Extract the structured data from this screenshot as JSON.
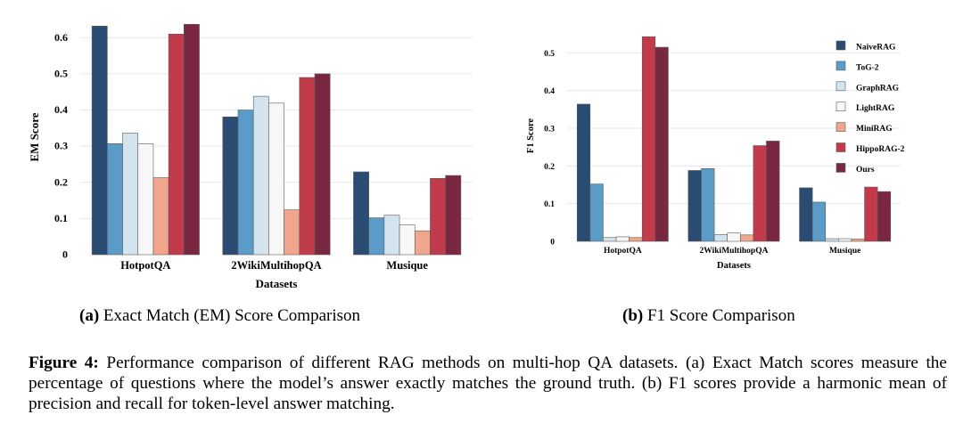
{
  "colors": {
    "NaiveRAG": "#2b4c72",
    "ToG-2": "#5b9bc8",
    "GraphRAG": "#d3e4ef",
    "LightRAG": "#f7f7f7",
    "MiniRAG": "#f0a68c",
    "HippoRAG-2": "#c23b4b",
    "Ours": "#7a2841"
  },
  "chart_data": [
    {
      "type": "bar",
      "xlabel": "Datasets",
      "ylabel": "EM Score",
      "ylim": [
        0,
        0.65
      ],
      "yticks": [
        "0",
        "0.1",
        "0.2",
        "0.3",
        "0.4",
        "0.5",
        "0.6"
      ],
      "grid": true,
      "legend": "none",
      "categories": [
        "HotpotQA",
        "2WikiMultihopQA",
        "Musique"
      ],
      "series": [
        {
          "name": "NaiveRAG",
          "values": [
            0.632,
            0.381,
            0.229
          ]
        },
        {
          "name": "ToG-2",
          "values": [
            0.307,
            0.4,
            0.102
          ]
        },
        {
          "name": "GraphRAG",
          "values": [
            0.336,
            0.438,
            0.109
          ]
        },
        {
          "name": "LightRAG",
          "values": [
            0.307,
            0.419,
            0.082
          ]
        },
        {
          "name": "MiniRAG",
          "values": [
            0.213,
            0.124,
            0.066
          ]
        },
        {
          "name": "HippoRAG-2",
          "values": [
            0.61,
            0.49,
            0.211
          ]
        },
        {
          "name": "Ours",
          "values": [
            0.637,
            0.5,
            0.219
          ]
        }
      ]
    },
    {
      "type": "bar",
      "xlabel": "Datasets",
      "ylabel": "F1 Score",
      "ylim": [
        0,
        0.56
      ],
      "yticks": [
        "0",
        "0.1",
        "0.2",
        "0.3",
        "0.4",
        "0.5"
      ],
      "grid": true,
      "legend": "top-right",
      "categories": [
        "HotpotQA",
        "2WikiMultihopQA",
        "Musique"
      ],
      "series": [
        {
          "name": "NaiveRAG",
          "values": [
            0.364,
            0.188,
            0.142
          ]
        },
        {
          "name": "ToG-2",
          "values": [
            0.152,
            0.193,
            0.104
          ]
        },
        {
          "name": "GraphRAG",
          "values": [
            0.01,
            0.018,
            0.007
          ]
        },
        {
          "name": "LightRAG",
          "values": [
            0.012,
            0.022,
            0.007
          ]
        },
        {
          "name": "MiniRAG",
          "values": [
            0.01,
            0.017,
            0.006
          ]
        },
        {
          "name": "HippoRAG-2",
          "values": [
            0.543,
            0.254,
            0.144
          ]
        },
        {
          "name": "Ours",
          "values": [
            0.515,
            0.266,
            0.132
          ]
        }
      ]
    }
  ],
  "subcaptions": [
    {
      "label": "(a)",
      "text": " Exact Match (EM) Score Comparison"
    },
    {
      "label": "(b)",
      "text": " F1 Score Comparison"
    }
  ],
  "caption": {
    "label": "Figure 4:",
    "text": " Performance comparison of different RAG methods on multi-hop QA datasets. (a) Exact Match scores measure the percentage of questions where the model’s answer exactly matches the ground truth. (b) F1 scores provide a harmonic mean of precision and recall for token-level answer matching."
  }
}
